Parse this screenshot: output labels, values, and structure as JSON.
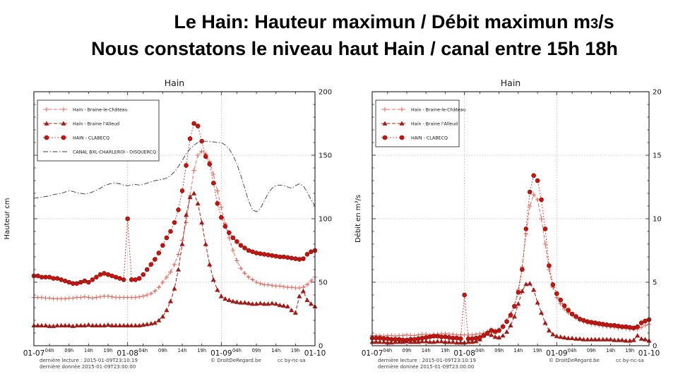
{
  "header": {
    "line1_pre": "Le Hain: Hauteur maximun  / Débit maximun m",
    "line1_sub": "3",
    "line1_post": "/s",
    "line2": "Nous constatons le niveau haut Hain / canal entre 15h 18h"
  },
  "footer": {
    "reading": "dernière lecture : 2015-01-09T23:10:19",
    "data": "dernière donnée  2015-01-09T23:00:00",
    "copyright": "© DroitDeRegard.be",
    "license": "cc by-nc-sa"
  },
  "colors": {
    "grid": "#9f9f9f",
    "frame": "#2e2e2e",
    "tick_text": "#111111",
    "footer_text": "#3c3c3c",
    "chateau": "#de6e64",
    "alleud": "#9e1c16",
    "clabecq": "#c4150f",
    "clabecq_edge": "#7c0b08",
    "canal": "#3a3a3a"
  },
  "chart_data": [
    {
      "type": "line",
      "title": "Hain",
      "ylabel": "Hauteur cm",
      "ylim": [
        0,
        200
      ],
      "yticks": [
        0,
        50,
        100,
        150,
        200
      ],
      "y_minor_step": 10,
      "x_hours_span": 72,
      "x_start": "2015-01-07T00:00",
      "grid_v_hours": [
        24,
        48
      ],
      "xticks_major": [
        {
          "h": 0,
          "label": "01-07"
        },
        {
          "h": 24,
          "label": "01-08"
        },
        {
          "h": 48,
          "label": "01-09"
        },
        {
          "h": 72,
          "label": "01-10"
        }
      ],
      "xticks_minor": [
        {
          "h": 4,
          "label": "04h"
        },
        {
          "h": 9,
          "label": "09h"
        },
        {
          "h": 14,
          "label": "14h"
        },
        {
          "h": 19,
          "label": "19h"
        },
        {
          "h": 28,
          "label": "04h"
        },
        {
          "h": 33,
          "label": "09h"
        },
        {
          "h": 38,
          "label": "14h"
        },
        {
          "h": 43,
          "label": "19h"
        },
        {
          "h": 52,
          "label": "04h"
        },
        {
          "h": 57,
          "label": "09h"
        },
        {
          "h": 62,
          "label": "14h"
        },
        {
          "h": 67,
          "label": "19h"
        }
      ],
      "series": [
        {
          "id": "braine-le-chateau",
          "name": "Hain - Braine-le-Château",
          "color": "#de6e64",
          "marker": "plus",
          "dash": "5 2.5",
          "z": 2,
          "values": [
            38,
            38,
            38,
            37.5,
            37.5,
            37,
            37,
            37,
            37,
            37.5,
            37.5,
            38,
            38,
            38.5,
            38,
            37.5,
            38,
            38.5,
            39,
            39,
            38.5,
            38,
            38,
            38,
            38,
            38,
            38,
            38.5,
            39,
            40,
            41,
            43,
            46,
            50,
            54,
            58,
            64,
            72,
            83,
            97,
            118,
            138,
            150,
            153,
            151,
            145,
            135,
            122,
            109,
            96,
            85,
            75,
            67,
            61,
            57,
            54,
            52,
            50,
            49,
            48,
            48,
            47.5,
            47,
            47,
            46.5,
            46,
            46,
            45.5,
            45.5,
            46,
            48,
            51,
            54
          ]
        },
        {
          "id": "braine-l-alleud",
          "name": "Hain - Braine l'Alleud",
          "color": "#9e1c16",
          "marker": "triangle",
          "dash": "5 2.5",
          "z": 3,
          "values": [
            16,
            16,
            16,
            16,
            15.5,
            15.5,
            16,
            16,
            16,
            16,
            15.5,
            16,
            16,
            16,
            16.5,
            16,
            16,
            16,
            16,
            16.5,
            16,
            16,
            16,
            16,
            16,
            16,
            16,
            16,
            16.5,
            17,
            17.5,
            18,
            20,
            23,
            28,
            35,
            45,
            60,
            80,
            103,
            117,
            120,
            112,
            97,
            80,
            64,
            52,
            44,
            39,
            37,
            36,
            35,
            34.5,
            34,
            34,
            33.5,
            33,
            33,
            33.5,
            33,
            33,
            33.5,
            33,
            32,
            31.5,
            31,
            28,
            26,
            39,
            43,
            36,
            33,
            31
          ]
        },
        {
          "id": "clabecq",
          "name": "HAIN - CLABECQ",
          "color": "#c4150f",
          "edge": "#7c0b08",
          "marker": "circle",
          "dash": "1.5 2.6",
          "z": 4,
          "values": [
            55,
            55,
            54,
            54,
            54,
            53,
            53,
            52,
            51,
            50,
            49,
            49,
            50,
            51,
            50,
            52,
            54,
            56,
            57,
            56,
            55,
            54,
            53,
            52,
            100,
            52,
            52,
            53,
            56,
            60,
            64,
            68,
            73,
            79,
            85,
            90,
            97,
            107,
            122,
            142,
            163,
            175,
            173,
            161,
            149,
            143,
            128,
            112,
            101,
            94,
            89,
            85,
            82,
            79,
            77,
            75,
            74,
            73,
            72.5,
            72,
            71.5,
            71,
            70.5,
            70,
            70,
            69.5,
            69,
            68.5,
            68,
            68.5,
            72,
            74,
            75
          ]
        },
        {
          "id": "canal",
          "name": "CANAL BXL-CHARLEROI - OISQUERCQ",
          "color": "#3a3a3a",
          "marker": "none",
          "dash": "7 2.5 1.5 2.5",
          "z": 1,
          "width": 0.9,
          "values": [
            116,
            116.5,
            117,
            117.5,
            118,
            119,
            119.5,
            120,
            121,
            122,
            121.5,
            120.5,
            120,
            119.5,
            120,
            121,
            122.5,
            124,
            126,
            127,
            128,
            128,
            127.5,
            126.5,
            126,
            126.5,
            127,
            126.5,
            127,
            128,
            129,
            130,
            130.5,
            131,
            132,
            134,
            137,
            141,
            146,
            151,
            155,
            158,
            160,
            161,
            161,
            161,
            160.5,
            160,
            160,
            158,
            155,
            150,
            143,
            134,
            124,
            114,
            107,
            105.5,
            108,
            114,
            120,
            124,
            126,
            126.5,
            126,
            125,
            124,
            126,
            127.5,
            126,
            121,
            115,
            110
          ]
        }
      ]
    },
    {
      "type": "line",
      "title": "Hain",
      "ylabel": "Débit en m³/s",
      "ylim": [
        0,
        20
      ],
      "yticks": [
        0,
        5,
        10,
        15,
        20
      ],
      "y_minor_step": 1,
      "x_hours_span": 72,
      "x_start": "2015-01-07T00:00",
      "grid_v_hours": [
        24,
        48
      ],
      "xticks_major": [
        {
          "h": 0,
          "label": "01-07"
        },
        {
          "h": 24,
          "label": "01-08"
        },
        {
          "h": 48,
          "label": "01-09"
        },
        {
          "h": 72,
          "label": "01-10"
        }
      ],
      "xticks_minor": [
        {
          "h": 4,
          "label": "04h"
        },
        {
          "h": 9,
          "label": "09h"
        },
        {
          "h": 14,
          "label": "14h"
        },
        {
          "h": 19,
          "label": "19h"
        },
        {
          "h": 28,
          "label": "04h"
        },
        {
          "h": 33,
          "label": "09h"
        },
        {
          "h": 38,
          "label": "14h"
        },
        {
          "h": 43,
          "label": "19h"
        },
        {
          "h": 52,
          "label": "04h"
        },
        {
          "h": 57,
          "label": "09h"
        },
        {
          "h": 62,
          "label": "14h"
        },
        {
          "h": 67,
          "label": "19h"
        }
      ],
      "series": [
        {
          "id": "braine-le-chateau",
          "name": "Hain - Braine-le-Château",
          "color": "#de6e64",
          "marker": "plus",
          "dash": "5 2.5",
          "z": 2,
          "values": [
            0.8,
            0.8,
            0.8,
            0.75,
            0.8,
            0.8,
            0.75,
            0.8,
            0.8,
            0.85,
            0.8,
            0.8,
            0.85,
            0.9,
            0.9,
            0.85,
            0.9,
            0.9,
            0.95,
            0.95,
            0.9,
            0.9,
            0.85,
            0.85,
            0.85,
            0.85,
            0.85,
            0.9,
            0.95,
            1,
            1.1,
            1.3,
            1.2,
            1.3,
            1.6,
            2,
            2.5,
            3.2,
            4.4,
            6.2,
            8.8,
            11,
            11.9,
            11.5,
            10,
            8,
            6,
            4.6,
            3.8,
            3.3,
            2.9,
            2.6,
            2.4,
            2.2,
            2,
            1.9,
            1.8,
            1.7,
            1.65,
            1.6,
            1.55,
            1.5,
            1.5,
            1.45,
            1.4,
            1.4,
            1.35,
            1.3,
            1.3,
            1.3,
            1.45,
            1.6,
            1.7
          ]
        },
        {
          "id": "braine-l-alleud",
          "name": "Hain - Braine l'Alleud",
          "color": "#9e1c16",
          "marker": "triangle",
          "dash": "5 2.5",
          "z": 3,
          "values": [
            0.3,
            0.3,
            0.3,
            0.3,
            0.25,
            0.25,
            0.3,
            0.3,
            0.3,
            0.35,
            0.3,
            0.3,
            0.3,
            0.35,
            0.35,
            0.3,
            0.3,
            0.35,
            0.35,
            0.3,
            0.3,
            0.3,
            0.25,
            0.25,
            0.25,
            0.3,
            0.3,
            0.35,
            0.5,
            0.8,
            0.95,
            0.85,
            0.7,
            0.65,
            0.8,
            1.1,
            1.6,
            2.3,
            3.3,
            4.3,
            4.85,
            4.9,
            4.4,
            3.4,
            2.6,
            1.8,
            1.2,
            0.9,
            0.75,
            0.7,
            0.65,
            0.6,
            0.6,
            0.55,
            0.55,
            0.5,
            0.5,
            0.5,
            0.5,
            0.5,
            0.5,
            0.5,
            0.5,
            0.45,
            0.45,
            0.45,
            0.4,
            0.4,
            0.45,
            0.8,
            0.55,
            0.5,
            0.4
          ]
        },
        {
          "id": "clabecq",
          "name": "HAIN - CLABECQ",
          "color": "#c4150f",
          "edge": "#7c0b08",
          "marker": "circle",
          "dash": "1.5 2.6",
          "z": 4,
          "values": [
            0.6,
            0.6,
            0.6,
            0.55,
            0.55,
            0.5,
            0.5,
            0.5,
            0.45,
            0.45,
            0.5,
            0.5,
            0.55,
            0.6,
            0.65,
            0.7,
            0.75,
            0.75,
            0.7,
            0.7,
            0.65,
            0.6,
            0.6,
            0.55,
            4,
            0.55,
            0.55,
            0.6,
            0.65,
            0.8,
            1,
            1.2,
            1.1,
            1.2,
            1.5,
            1.9,
            2.4,
            3.1,
            4.2,
            6,
            9.2,
            12.1,
            13.4,
            13,
            11.5,
            9.2,
            6.3,
            4.8,
            4.1,
            3.6,
            3.15,
            2.8,
            2.5,
            2.3,
            2.1,
            2,
            1.9,
            1.85,
            1.8,
            1.75,
            1.7,
            1.65,
            1.6,
            1.6,
            1.55,
            1.5,
            1.5,
            1.45,
            1.4,
            1.5,
            1.8,
            1.95,
            2.05
          ]
        }
      ]
    }
  ]
}
